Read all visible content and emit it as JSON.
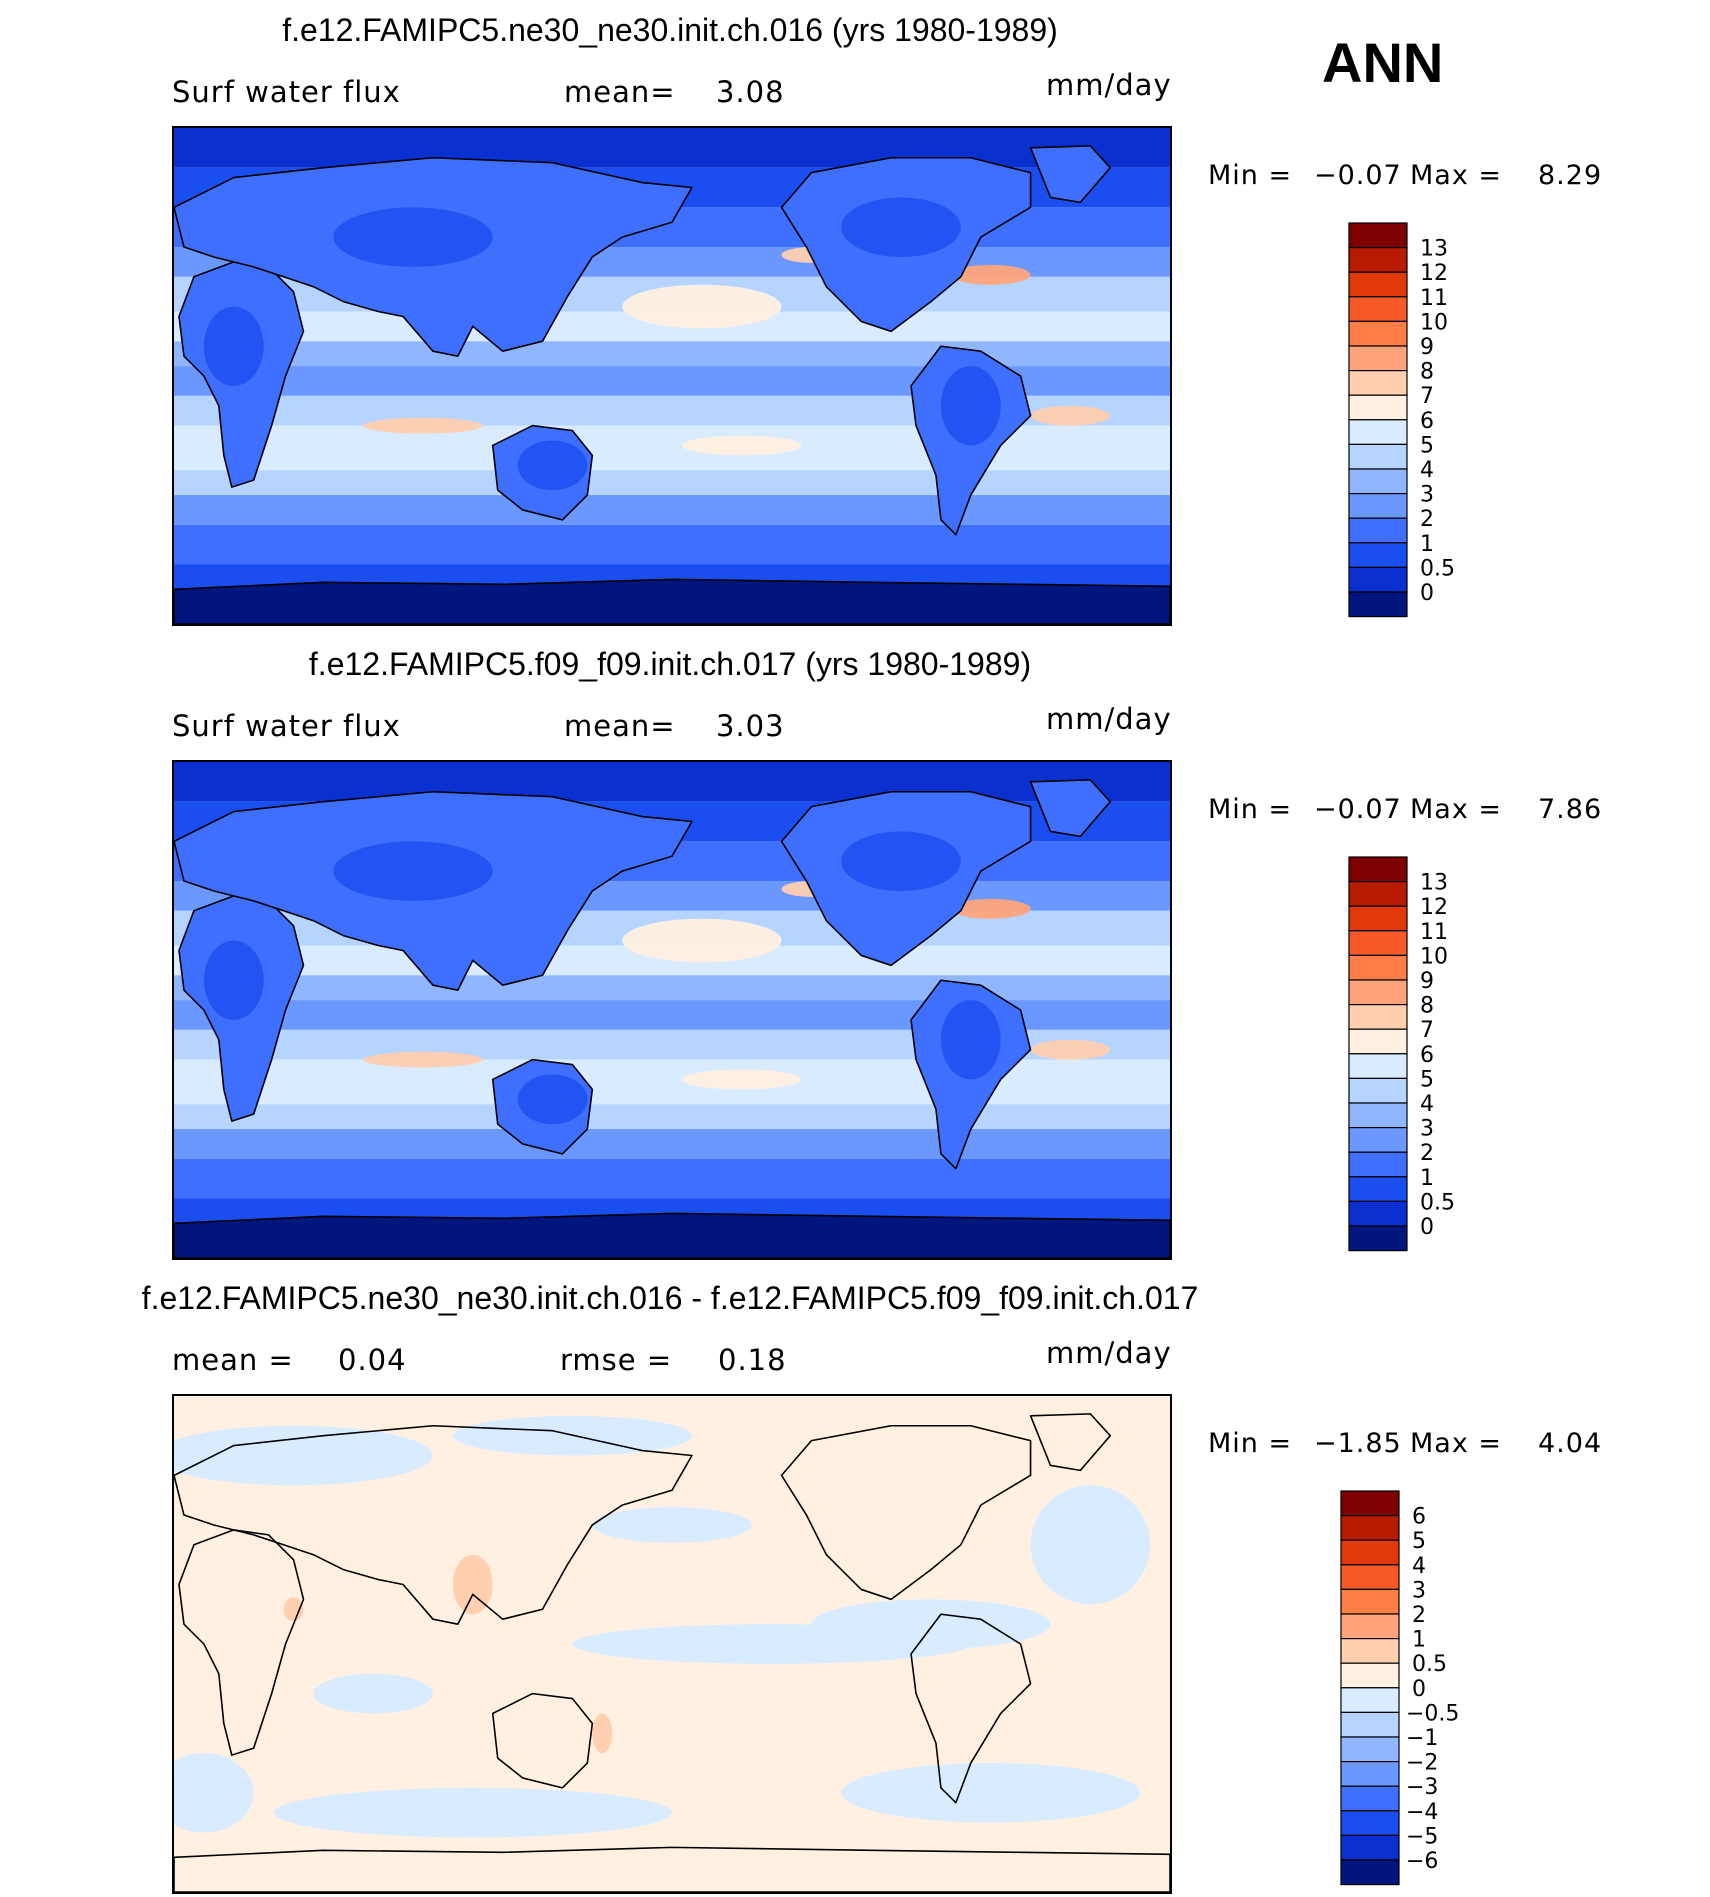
{
  "season": "ANN",
  "panels": [
    {
      "title": "f.e12.FAMIPC5.ne30_ne30.init.ch.016 (yrs 1980-1989)",
      "left_label": "Surf water flux",
      "center_label": "mean=",
      "center_value": "3.08",
      "units": "mm/day",
      "min_label": "Min =",
      "min_value": "−0.07",
      "max_label": "Max =",
      "max_value": "8.29",
      "colorbar": {
        "labels": [
          "13",
          "12",
          "11",
          "10",
          "9",
          "8",
          "7",
          "6",
          "5",
          "4",
          "3",
          "2",
          "1",
          "0.5",
          "0"
        ],
        "colors": [
          "#7f0000",
          "#b71c00",
          "#e03a0a",
          "#f65a28",
          "#ff7e45",
          "#ffa47a",
          "#ffcfb0",
          "#fff0e2",
          "#d9ecff",
          "#b5d4ff",
          "#8fb6ff",
          "#6b98ff",
          "#3f6fff",
          "#1a4ef0",
          "#0a30d0",
          "#00157e"
        ]
      }
    },
    {
      "title": "f.e12.FAMIPC5.f09_f09.init.ch.017 (yrs 1980-1989)",
      "left_label": "Surf water flux",
      "center_label": "mean=",
      "center_value": "3.03",
      "units": "mm/day",
      "min_label": "Min =",
      "min_value": "−0.07",
      "max_label": "Max =",
      "max_value": "7.86",
      "colorbar": {
        "labels": [
          "13",
          "12",
          "11",
          "10",
          "9",
          "8",
          "7",
          "6",
          "5",
          "4",
          "3",
          "2",
          "1",
          "0.5",
          "0"
        ],
        "colors": [
          "#7f0000",
          "#b71c00",
          "#e03a0a",
          "#f65a28",
          "#ff7e45",
          "#ffa47a",
          "#ffcfb0",
          "#fff0e2",
          "#d9ecff",
          "#b5d4ff",
          "#8fb6ff",
          "#6b98ff",
          "#3f6fff",
          "#1a4ef0",
          "#0a30d0",
          "#00157e"
        ]
      }
    },
    {
      "title": "f.e12.FAMIPC5.ne30_ne30.init.ch.016 - f.e12.FAMIPC5.f09_f09.init.ch.017",
      "left_label": "mean =",
      "left_value": "0.04",
      "center_label": "rmse =",
      "center_value": "0.18",
      "units": "mm/day",
      "min_label": "Min =",
      "min_value": "−1.85",
      "max_label": "Max =",
      "max_value": "4.04",
      "colorbar": {
        "labels": [
          "6",
          "5",
          "4",
          "3",
          "2",
          "1",
          "0.5",
          "0",
          "−0.5",
          "−1",
          "−2",
          "−3",
          "−4",
          "−5",
          "−6"
        ],
        "colors": [
          "#7f0000",
          "#b71c00",
          "#e03a0a",
          "#f65a28",
          "#ff7e45",
          "#ffa47a",
          "#ffcfb0",
          "#fff0e2",
          "#d9ecff",
          "#b5d4ff",
          "#8fb6ff",
          "#6b98ff",
          "#3f6fff",
          "#1a4ef0",
          "#0a30d0",
          "#00157e"
        ]
      }
    }
  ]
}
